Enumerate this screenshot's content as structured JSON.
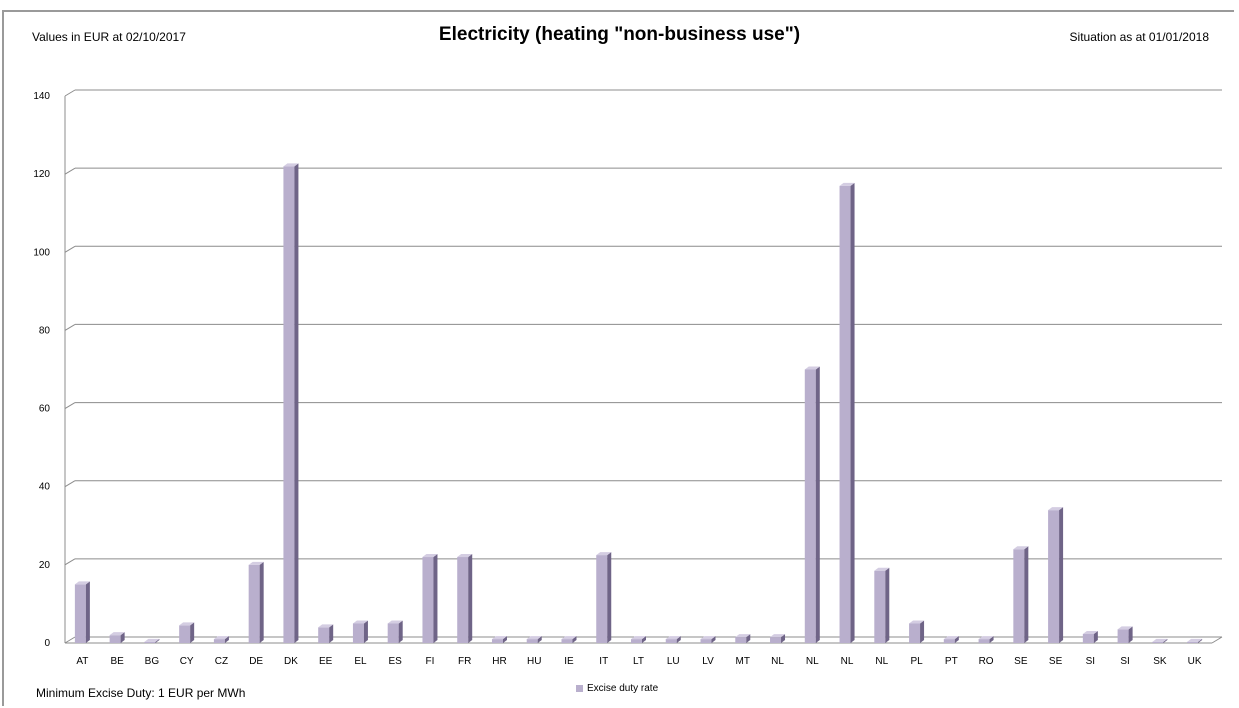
{
  "header": {
    "left_note": "Values in EUR at 02/10/2017",
    "title": "Electricity (heating \"non-business use\")",
    "right_note": "Situation as at 01/01/2018"
  },
  "footer_note": "Minimum Excise Duty: 1 EUR per MWh",
  "colors": {
    "bar_front": "#b9afcd",
    "bar_side": "#6f6487",
    "bar_top": "#d4cde2",
    "grid": "#8c8c8c"
  },
  "chart_data": {
    "type": "bar",
    "title": "Electricity (heating \"non-business use\")",
    "categories": [
      "AT",
      "BE",
      "BG",
      "CY",
      "CZ",
      "DE",
      "DK",
      "EE",
      "EL",
      "ES",
      "FI",
      "FR",
      "HR",
      "HU",
      "IE",
      "IT",
      "LT",
      "LU",
      "LV",
      "MT",
      "NL",
      "NL",
      "NL",
      "NL",
      "PL",
      "PT",
      "RO",
      "SE",
      "SE",
      "SI",
      "SI",
      "SK",
      "UK"
    ],
    "series": [
      {
        "name": "Excise duty rate",
        "values": [
          15,
          2,
          0.3,
          4.5,
          1,
          20,
          122,
          4,
          5,
          5,
          22,
          22,
          1,
          1,
          1,
          22.5,
          1,
          1,
          1,
          1.5,
          1.5,
          70,
          117,
          18.5,
          5,
          1,
          1,
          24,
          34,
          2.3,
          3.5,
          0.3,
          0.3
        ]
      }
    ],
    "ylim": [
      0,
      140
    ],
    "yticks": [
      "0",
      "20",
      "40",
      "60",
      "80",
      "100",
      "120",
      "140"
    ],
    "grid": true,
    "legend_position": "bottom-center"
  }
}
